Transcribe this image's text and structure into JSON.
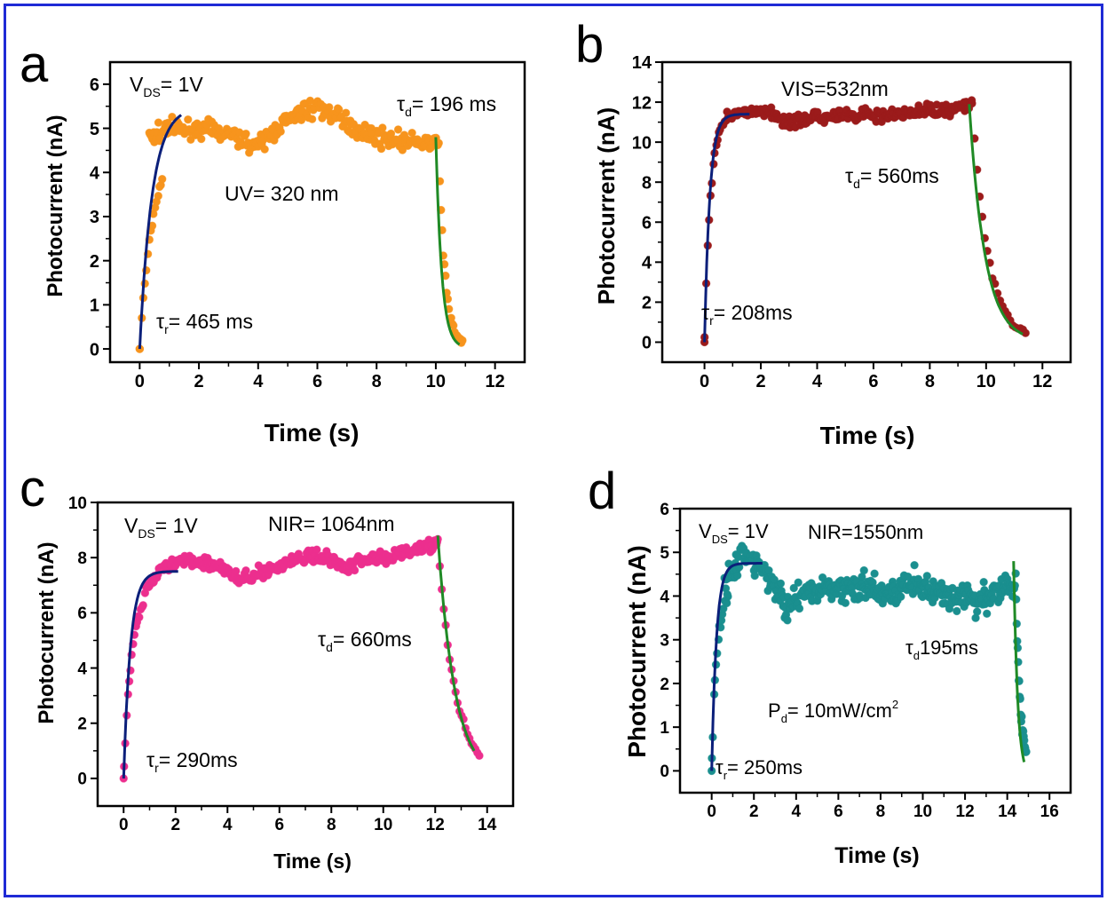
{
  "figure": {
    "border_color": "#1f2bd6",
    "fit_rise_color": "#0b1f7a",
    "fit_decay_color": "#1f8a25"
  },
  "chart_data": [
    {
      "panel": "a",
      "type": "scatter",
      "xlabel": "Time (s)",
      "ylabel": "Photocurrent (nA)",
      "xlim": [
        -1,
        13
      ],
      "ylim": [
        -0.3,
        6.5
      ],
      "xticks": [
        0,
        2,
        4,
        6,
        8,
        10,
        12
      ],
      "yticks": [
        0,
        1,
        2,
        3,
        4,
        5,
        6
      ],
      "marker_color": "#f7941d",
      "annotations": {
        "bias": "V",
        "bias_sub": "DS",
        "bias_value": "= 1V",
        "wavelength": "UV= 320 nm",
        "tau_d_sub": "d",
        "tau_d_value": "= 196 ms",
        "tau_r_sub": "r",
        "tau_r_value": "= 465 ms"
      },
      "series": {
        "t_on": 0,
        "t_off": 10.1,
        "t_end": 10.9,
        "plateau": [
          [
            0.3,
            4.8
          ],
          [
            1.0,
            5.0
          ],
          [
            2.0,
            5.0
          ],
          [
            3.0,
            4.9
          ],
          [
            4.0,
            4.6
          ],
          [
            5.0,
            5.2
          ],
          [
            6.0,
            5.5
          ],
          [
            7.0,
            5.1
          ],
          [
            8.0,
            4.8
          ],
          [
            9.0,
            4.7
          ],
          [
            10.1,
            4.6
          ]
        ],
        "rise_fit_end": [
          1.4,
          5.3
        ],
        "decay_fit_start": [
          10.0,
          4.8
        ],
        "decay_fit_end": [
          10.8,
          0.1
        ],
        "noise": 0.22,
        "tau_rise": 0.465,
        "tau_decay": 0.196
      }
    },
    {
      "panel": "b",
      "type": "scatter",
      "xlabel": "Time (s)",
      "ylabel": "Photocurrent (nA)",
      "xlim": [
        -1.5,
        13
      ],
      "ylim": [
        -1,
        14
      ],
      "xticks": [
        0,
        2,
        4,
        6,
        8,
        10,
        12
      ],
      "yticks": [
        0,
        2,
        4,
        6,
        8,
        10,
        12,
        14
      ],
      "marker_color": "#9b1b1b",
      "annotations": {
        "wavelength": "VIS=532nm",
        "tau_d_sub": "d",
        "tau_d_value": "= 560ms",
        "tau_r_sub": "r",
        "tau_r_value": "= 208ms"
      },
      "series": {
        "t_on": 0,
        "t_off": 9.5,
        "t_end": 11.4,
        "plateau": [
          [
            0.8,
            11.3
          ],
          [
            2.0,
            11.6
          ],
          [
            3.0,
            11.0
          ],
          [
            4.0,
            11.2
          ],
          [
            5.0,
            11.3
          ],
          [
            6.0,
            11.3
          ],
          [
            7.0,
            11.4
          ],
          [
            8.0,
            11.6
          ],
          [
            9.5,
            11.8
          ]
        ],
        "rise_fit_end": [
          1.6,
          11.4
        ],
        "decay_fit_start": [
          9.4,
          11.9
        ],
        "decay_fit_end": [
          11.3,
          0.4
        ],
        "noise": 0.35,
        "tau_rise": 0.208,
        "tau_decay": 0.56
      }
    },
    {
      "panel": "c",
      "type": "scatter",
      "xlabel": "Time (s)",
      "ylabel": "Photocurrent (nA)",
      "xlim": [
        -1,
        15
      ],
      "ylim": [
        -1,
        10
      ],
      "xticks": [
        0,
        2,
        4,
        6,
        8,
        10,
        12,
        14
      ],
      "yticks": [
        0,
        2,
        4,
        6,
        8,
        10
      ],
      "marker_color": "#ec2f8e",
      "annotations": {
        "bias": "V",
        "bias_sub": "DS",
        "bias_value": "= 1V",
        "wavelength": "NIR= 1064nm",
        "tau_d_sub": "d",
        "tau_d_value": "= 660ms",
        "tau_r_sub": "r",
        "tau_r_value": "= 290ms"
      },
      "series": {
        "t_on": 0,
        "t_off": 12.1,
        "t_end": 13.7,
        "plateau": [
          [
            0.8,
            6.8
          ],
          [
            1.5,
            7.6
          ],
          [
            2.5,
            7.9
          ],
          [
            3.5,
            7.8
          ],
          [
            4.5,
            7.2
          ],
          [
            5.5,
            7.5
          ],
          [
            6.5,
            7.9
          ],
          [
            7.5,
            8.1
          ],
          [
            8.5,
            7.7
          ],
          [
            9.5,
            8.0
          ],
          [
            10.5,
            8.1
          ],
          [
            12.1,
            8.5
          ]
        ],
        "rise_fit_end": [
          2.1,
          7.5
        ],
        "decay_fit_start": [
          12.1,
          8.8
        ],
        "decay_fit_end": [
          13.5,
          1.0
        ],
        "noise": 0.25,
        "tau_rise": 0.29,
        "tau_decay": 0.66
      }
    },
    {
      "panel": "d",
      "type": "scatter",
      "xlabel": "Time (s)",
      "ylabel": "Photocurrent (nA)",
      "xlim": [
        -1.5,
        17
      ],
      "ylim": [
        -0.5,
        6
      ],
      "xticks": [
        0,
        2,
        4,
        6,
        8,
        10,
        12,
        14,
        16
      ],
      "yticks": [
        0,
        1,
        2,
        3,
        4,
        5,
        6
      ],
      "marker_color": "#1a8f8f",
      "annotations": {
        "bias": "V",
        "bias_sub": "DS",
        "bias_value": "= 1V",
        "wavelength": "NIR=1550nm",
        "tau_d_sub": "d",
        "tau_d_value": "195ms",
        "tau_r_sub": "r",
        "tau_r_value": "= 250ms",
        "power": "P",
        "power_sub": "d",
        "power_value": "= 10mW/cm",
        "power_sup": "2"
      },
      "series": {
        "t_on": 0,
        "t_off": 14.4,
        "t_end": 14.9,
        "plateau": [
          [
            0.6,
            4.2
          ],
          [
            1.5,
            5.0
          ],
          [
            2.5,
            4.6
          ],
          [
            3.5,
            3.8
          ],
          [
            4.5,
            4.0
          ],
          [
            5.5,
            4.3
          ],
          [
            6.5,
            4.1
          ],
          [
            7.5,
            4.2
          ],
          [
            8.5,
            4.0
          ],
          [
            9.5,
            4.3
          ],
          [
            10.5,
            4.1
          ],
          [
            11.5,
            4.0
          ],
          [
            12.5,
            3.9
          ],
          [
            13.5,
            4.1
          ],
          [
            14.4,
            4.3
          ]
        ],
        "rise_fit_end": [
          2.4,
          4.75
        ],
        "decay_fit_start": [
          14.3,
          4.8
        ],
        "decay_fit_end": [
          14.8,
          0.2
        ],
        "noise": 0.35,
        "tau_rise": 0.25,
        "tau_decay": 0.195
      }
    }
  ],
  "panel_letters": [
    "a",
    "b",
    "c",
    "d"
  ]
}
